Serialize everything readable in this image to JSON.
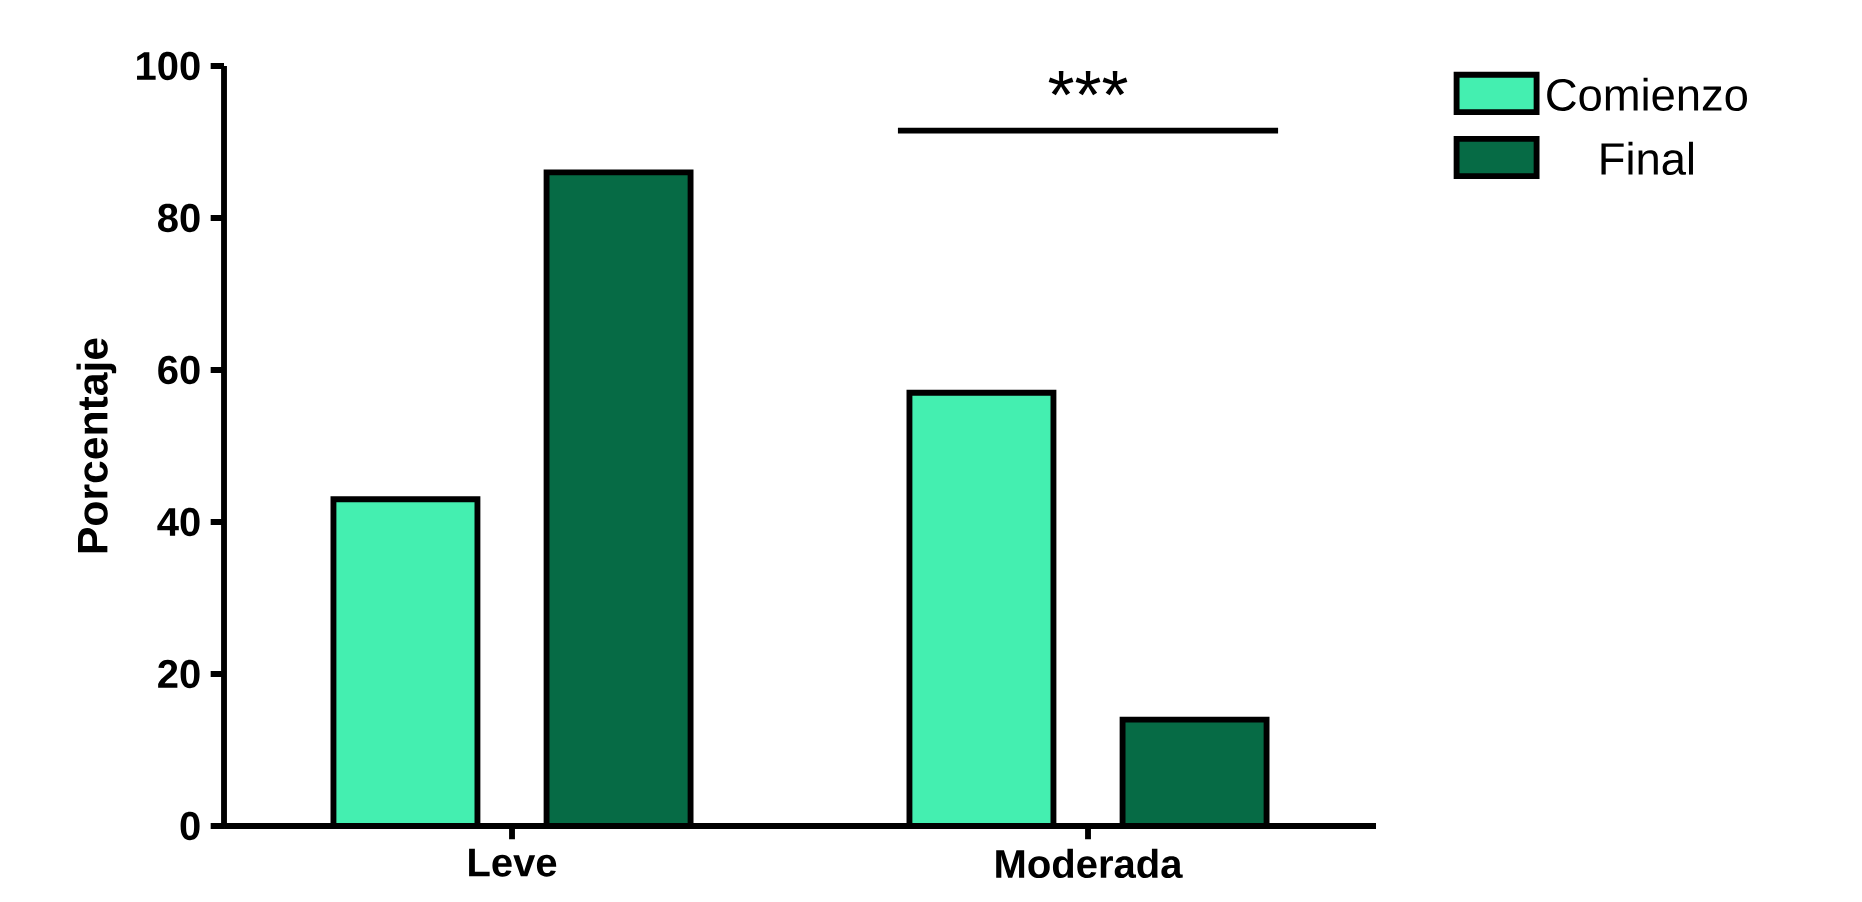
{
  "chart_data": {
    "type": "bar",
    "ylabel": "Porcentaje",
    "categories": [
      "Leve",
      "Moderada"
    ],
    "series": [
      {
        "name": "Comienzo",
        "color": "#44efb0",
        "values": [
          43,
          57
        ]
      },
      {
        "name": "Final",
        "color": "#066b45",
        "values": [
          86,
          14
        ]
      }
    ],
    "ylim": [
      0,
      100
    ],
    "yticks": [
      0,
      20,
      40,
      60,
      80,
      100
    ],
    "grid": false,
    "legend": "top right",
    "annotations": [
      "***"
    ]
  }
}
